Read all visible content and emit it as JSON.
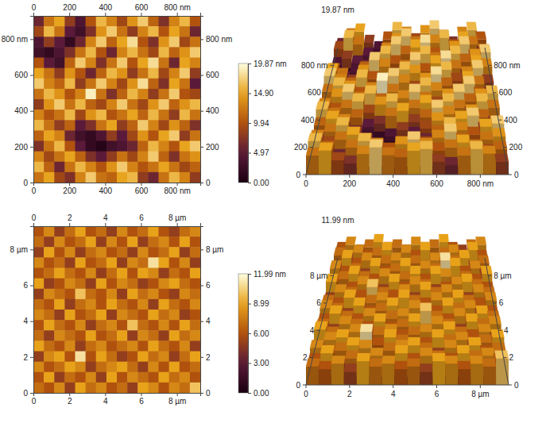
{
  "chart_data": [
    {
      "type": "heatmap",
      "xlim": [
        0,
        930
      ],
      "ylim": [
        0,
        930
      ],
      "xticks": [
        0,
        200,
        400,
        600,
        {
          "value": 800,
          "label": "800 nm"
        }
      ],
      "yticks": [
        0,
        200,
        400,
        600,
        {
          "value": 800,
          "label": "800 nm"
        }
      ],
      "colorbar": {
        "range": [
          0,
          19.87
        ],
        "ticks": [
          {
            "value": 0,
            "label": "0.00"
          },
          4.97,
          9.94,
          {
            "value": 14.9,
            "label": "14.90"
          },
          {
            "value": 19.87,
            "label": "19.87 nm"
          }
        ]
      },
      "cells": [
        [
          6,
          12,
          15,
          8,
          4,
          10,
          16,
          13,
          9,
          14,
          17,
          11,
          7,
          13,
          16,
          10
        ],
        [
          9,
          16,
          12,
          5,
          3,
          7,
          14,
          17,
          12,
          8,
          13,
          16,
          10,
          15,
          12,
          6
        ],
        [
          4,
          8,
          5,
          2,
          6,
          13,
          17,
          11,
          15,
          18,
          10,
          7,
          14,
          17,
          9,
          12
        ],
        [
          3,
          2,
          4,
          7,
          12,
          16,
          10,
          6,
          13,
          16,
          12,
          9,
          16,
          11,
          14,
          17
        ],
        [
          10,
          5,
          3,
          11,
          17,
          13,
          7,
          12,
          17,
          10,
          15,
          18,
          12,
          6,
          15,
          13
        ],
        [
          15,
          12,
          8,
          14,
          10,
          6,
          11,
          16,
          14,
          8,
          12,
          16,
          9,
          13,
          17,
          8
        ],
        [
          17,
          13,
          11,
          16,
          8,
          12,
          17,
          13,
          9,
          14,
          18,
          11,
          7,
          15,
          12,
          5
        ],
        [
          12,
          16,
          14,
          10,
          13,
          19,
          12,
          7,
          11,
          16,
          13,
          8,
          12,
          17,
          10,
          9
        ],
        [
          8,
          14,
          17,
          12,
          16,
          11,
          9,
          13,
          17,
          12,
          9,
          14,
          17,
          11,
          14,
          16
        ],
        [
          13,
          10,
          12,
          16,
          9,
          14,
          16,
          10,
          12,
          15,
          11,
          16,
          12,
          8,
          16,
          12
        ],
        [
          16,
          12,
          8,
          11,
          5,
          7,
          12,
          15,
          8,
          11,
          17,
          13,
          9,
          14,
          11,
          7
        ],
        [
          11,
          15,
          13,
          6,
          3,
          2,
          4,
          8,
          5,
          9,
          14,
          10,
          15,
          17,
          8,
          12
        ],
        [
          7,
          12,
          16,
          10,
          5,
          2,
          1,
          3,
          4,
          6,
          11,
          16,
          13,
          10,
          15,
          17
        ],
        [
          13,
          9,
          12,
          15,
          11,
          7,
          5,
          8,
          12,
          9,
          13,
          17,
          11,
          7,
          12,
          14
        ],
        [
          16,
          11,
          6,
          12,
          16,
          13,
          10,
          14,
          17,
          13,
          10,
          12,
          15,
          12,
          9,
          11
        ],
        [
          12,
          15,
          9,
          7,
          13,
          17,
          12,
          11,
          15,
          16,
          8,
          6,
          12,
          16,
          13,
          8
        ]
      ]
    },
    {
      "type": "heatmap",
      "xlim": [
        0,
        9.3
      ],
      "ylim": [
        0,
        9.3
      ],
      "xticks": [
        0,
        2,
        4,
        6,
        {
          "value": 8,
          "label": "8 µm"
        }
      ],
      "yticks": [
        0,
        2,
        4,
        6,
        {
          "value": 8,
          "label": "8 µm"
        }
      ],
      "colorbar": {
        "range": [
          0,
          11.99
        ],
        "ticks": [
          {
            "value": 0,
            "label": "0.00"
          },
          {
            "value": 3,
            "label": "3.00"
          },
          {
            "value": 6,
            "label": "6.00"
          },
          8.99,
          {
            "value": 11.99,
            "label": "11.99 nm"
          }
        ]
      },
      "cells": [
        [
          6,
          8,
          5,
          7,
          9,
          6,
          7,
          5,
          8,
          6,
          7,
          9,
          6,
          5,
          7,
          8
        ],
        [
          7,
          5,
          8,
          6,
          7,
          9,
          5,
          8,
          6,
          9,
          5,
          7,
          8,
          6,
          9,
          6
        ],
        [
          5,
          9,
          6,
          8,
          5,
          7,
          8,
          6,
          7,
          5,
          8,
          6,
          7,
          9,
          5,
          7
        ],
        [
          8,
          6,
          7,
          5,
          9,
          6,
          7,
          9,
          5,
          8,
          7,
          11,
          9,
          6,
          8,
          5
        ],
        [
          6,
          7,
          9,
          7,
          6,
          8,
          5,
          7,
          9,
          6,
          9,
          8,
          5,
          7,
          6,
          9
        ],
        [
          9,
          5,
          6,
          8,
          7,
          5,
          9,
          6,
          8,
          7,
          5,
          6,
          8,
          9,
          7,
          6
        ],
        [
          5,
          8,
          7,
          6,
          10,
          7,
          6,
          8,
          5,
          9,
          7,
          8,
          6,
          5,
          8,
          7
        ],
        [
          7,
          6,
          9,
          5,
          7,
          8,
          6,
          9,
          7,
          6,
          8,
          5,
          9,
          7,
          6,
          8
        ],
        [
          8,
          7,
          5,
          9,
          6,
          7,
          9,
          5,
          8,
          7,
          6,
          9,
          7,
          8,
          5,
          6
        ],
        [
          6,
          9,
          7,
          6,
          8,
          5,
          7,
          8,
          6,
          10,
          7,
          6,
          8,
          6,
          9,
          7
        ],
        [
          7,
          5,
          8,
          7,
          6,
          9,
          6,
          7,
          9,
          5,
          8,
          7,
          5,
          9,
          7,
          8
        ],
        [
          9,
          7,
          6,
          8,
          5,
          7,
          8,
          6,
          7,
          8,
          6,
          9,
          7,
          6,
          8,
          5
        ],
        [
          5,
          8,
          9,
          6,
          11,
          6,
          9,
          7,
          5,
          6,
          9,
          7,
          8,
          5,
          7,
          9
        ],
        [
          8,
          6,
          7,
          9,
          8,
          5,
          7,
          8,
          9,
          7,
          5,
          8,
          6,
          9,
          6,
          7
        ],
        [
          6,
          9,
          5,
          7,
          6,
          8,
          5,
          9,
          6,
          8,
          7,
          6,
          9,
          7,
          8,
          6
        ],
        [
          7,
          6,
          8,
          5,
          9,
          7,
          8,
          6,
          7,
          5,
          9,
          8,
          6,
          8,
          7,
          10
        ]
      ]
    }
  ]
}
